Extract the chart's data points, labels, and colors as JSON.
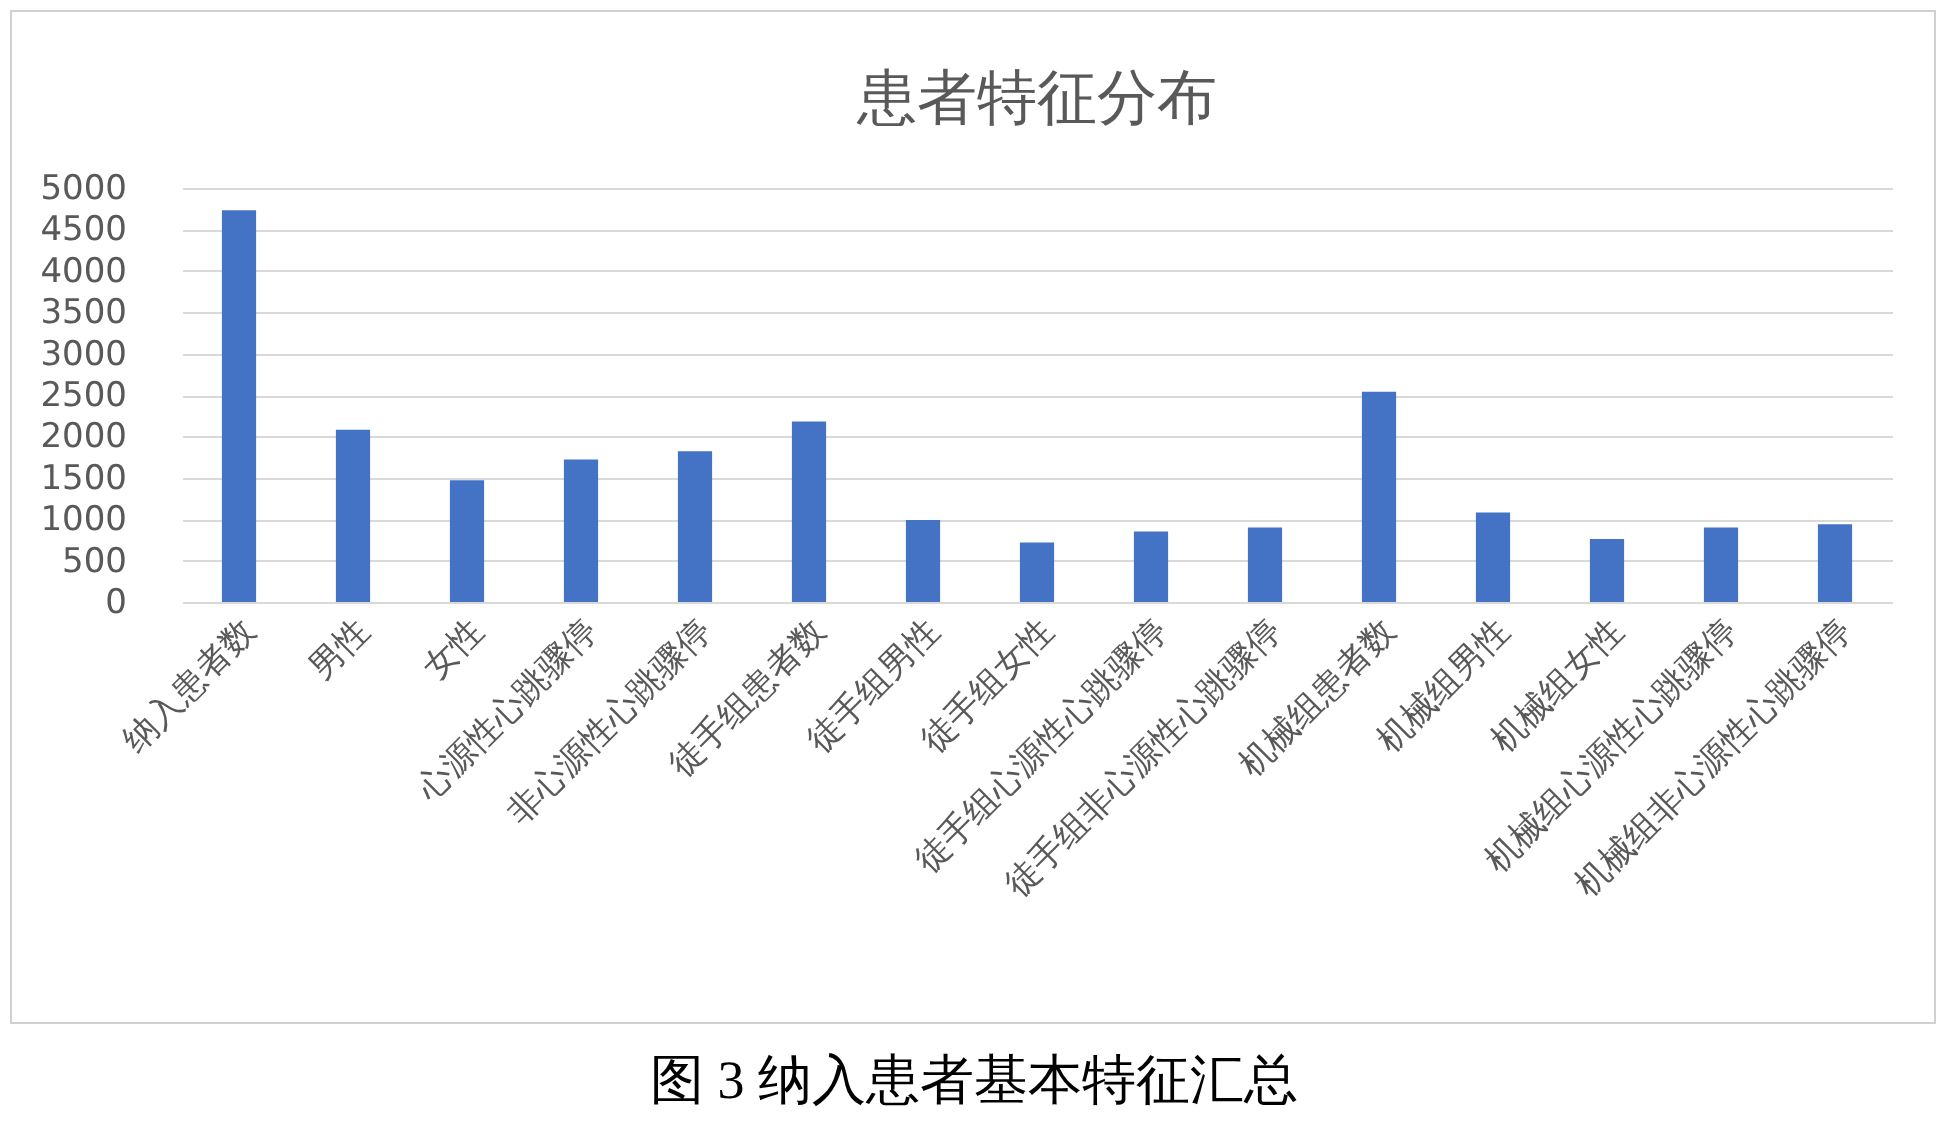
{
  "chart_data": {
    "type": "bar",
    "title": "患者特征分布",
    "categories": [
      "纳入患者数",
      "男性",
      "女性",
      "心源性心跳骤停",
      "非心源性心跳骤停",
      "徒手组患者数",
      "徒手组男性",
      "徒手组女性",
      "徒手组心源性心跳骤停",
      "徒手组非心源性心跳骤停",
      "机械组患者数",
      "机械组男性",
      "机械组女性",
      "机械组心源性心跳骤停",
      "机械组非心源性心跳骤停"
    ],
    "values": [
      4730,
      2080,
      1470,
      1720,
      1820,
      2180,
      990,
      720,
      850,
      900,
      2540,
      1080,
      760,
      900,
      940
    ],
    "color": "#4472c4",
    "ylim": [
      0,
      5000
    ],
    "yticks": [
      0,
      500,
      1000,
      1500,
      2000,
      2500,
      3000,
      3500,
      4000,
      4500,
      5000
    ],
    "grid": "y",
    "annotations": [
      "图 3 纳入患者基本特征汇总"
    ]
  }
}
